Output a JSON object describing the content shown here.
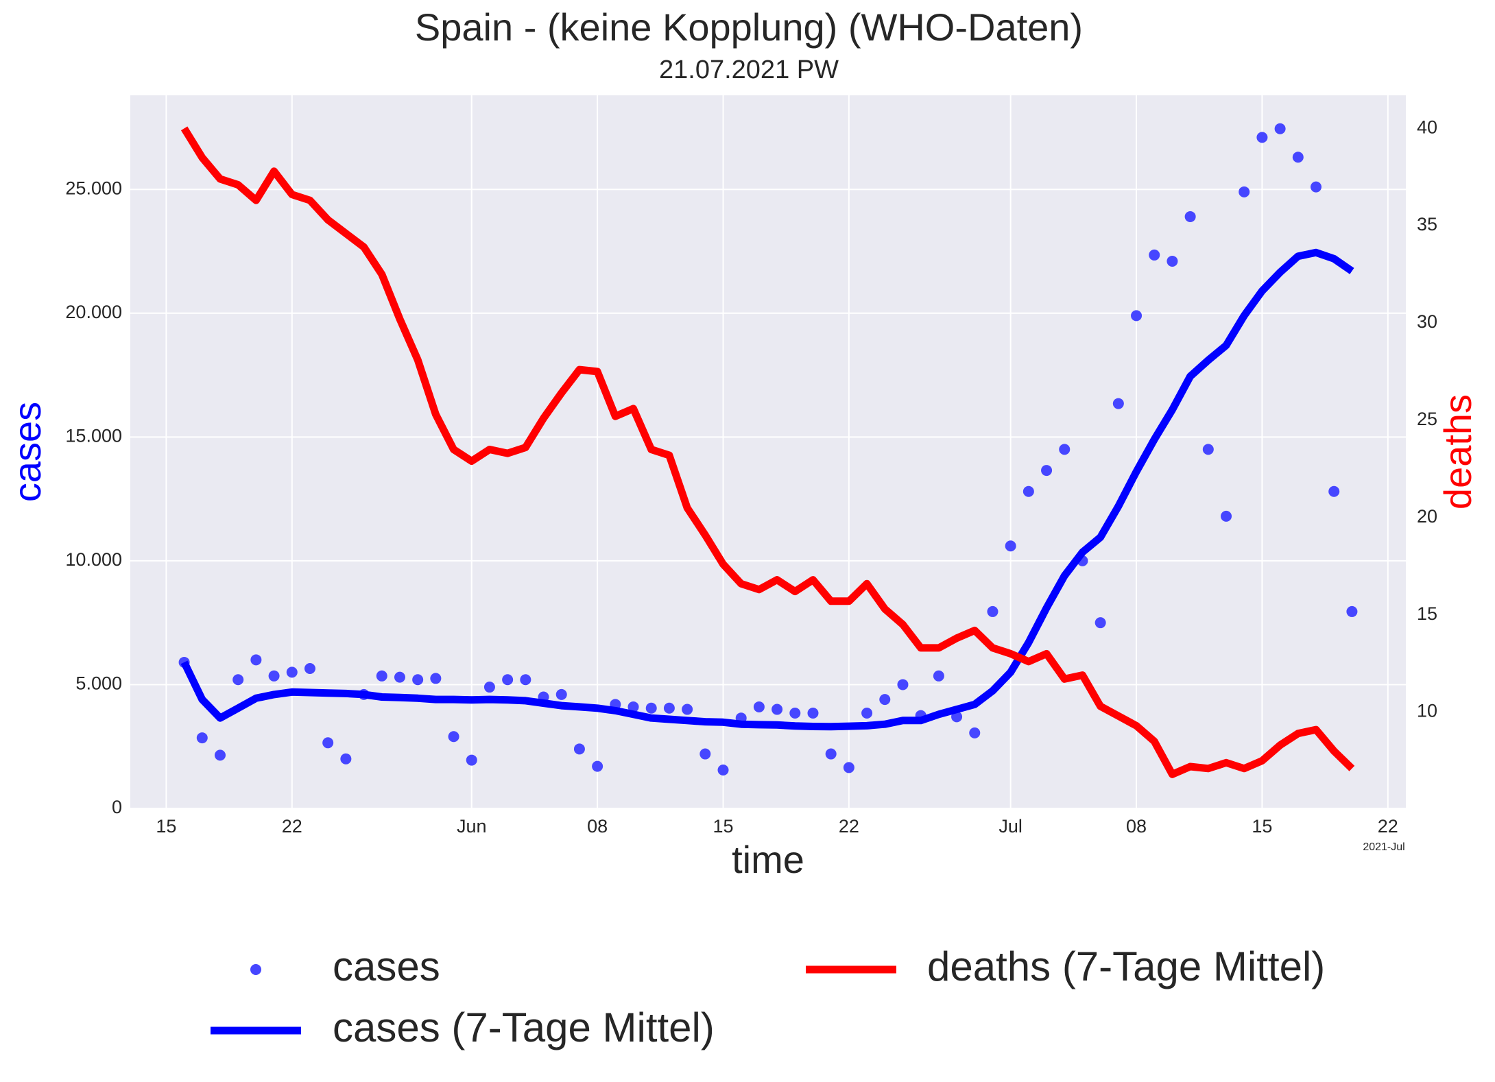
{
  "chart_data": {
    "type": "line",
    "title": "Spain - (keine Kopplung)  (WHO-Daten)",
    "subtitle": "21.07.2021 PW",
    "x_label": "time",
    "y_label": "cases",
    "y2_label": "deaths",
    "y_label_color": "#0000ff",
    "y2_label_color": "#ff0000",
    "x_offset_label": "2021-Jul",
    "grid": true,
    "x": [
      "2021-05-16",
      "2021-05-17",
      "2021-05-18",
      "2021-05-19",
      "2021-05-20",
      "2021-05-21",
      "2021-05-22",
      "2021-05-23",
      "2021-05-24",
      "2021-05-25",
      "2021-05-26",
      "2021-05-27",
      "2021-05-28",
      "2021-05-29",
      "2021-05-30",
      "2021-05-31",
      "2021-06-01",
      "2021-06-02",
      "2021-06-03",
      "2021-06-04",
      "2021-06-05",
      "2021-06-06",
      "2021-06-07",
      "2021-06-08",
      "2021-06-09",
      "2021-06-10",
      "2021-06-11",
      "2021-06-12",
      "2021-06-13",
      "2021-06-14",
      "2021-06-15",
      "2021-06-16",
      "2021-06-17",
      "2021-06-18",
      "2021-06-19",
      "2021-06-20",
      "2021-06-21",
      "2021-06-22",
      "2021-06-23",
      "2021-06-24",
      "2021-06-25",
      "2021-06-26",
      "2021-06-27",
      "2021-06-28",
      "2021-06-29",
      "2021-06-30",
      "2021-07-01",
      "2021-07-02",
      "2021-07-03",
      "2021-07-04",
      "2021-07-05",
      "2021-07-06",
      "2021-07-07",
      "2021-07-08",
      "2021-07-09",
      "2021-07-10",
      "2021-07-11",
      "2021-07-12",
      "2021-07-13",
      "2021-07-14",
      "2021-07-15",
      "2021-07-16",
      "2021-07-17",
      "2021-07-18",
      "2021-07-19",
      "2021-07-20"
    ],
    "xlim": [
      "2021-05-13",
      "2021-07-23"
    ],
    "xticks": [
      {
        "value": "2021-05-15",
        "label": "15"
      },
      {
        "value": "2021-05-22",
        "label": "22"
      },
      {
        "value": "2021-06-01",
        "label": "Jun"
      },
      {
        "value": "2021-06-08",
        "label": "08"
      },
      {
        "value": "2021-06-15",
        "label": "15"
      },
      {
        "value": "2021-06-22",
        "label": "22"
      },
      {
        "value": "2021-07-01",
        "label": "Jul"
      },
      {
        "value": "2021-07-08",
        "label": "08"
      },
      {
        "value": "2021-07-15",
        "label": "15"
      },
      {
        "value": "2021-07-22",
        "label": "22"
      }
    ],
    "ylim": [
      0,
      28800
    ],
    "yticks": [
      0,
      {
        "value": 5000,
        "label": "5.000"
      },
      {
        "value": 10000,
        "label": "10.000"
      },
      {
        "value": 15000,
        "label": "15.000"
      },
      {
        "value": 20000,
        "label": "20.000"
      },
      {
        "value": 25000,
        "label": "25.000"
      }
    ],
    "y2lim": [
      5.05,
      41.7
    ],
    "y2ticks": [
      10,
      15,
      20,
      25,
      30,
      35,
      40
    ],
    "series": [
      {
        "name": "cases",
        "color": "#4646ff",
        "style": "scatter",
        "values": [
          5900,
          2850,
          2150,
          5200,
          6000,
          5350,
          5500,
          5650,
          2650,
          2000,
          4600,
          5350,
          5300,
          5200,
          5250,
          2900,
          1950,
          4900,
          5200,
          5200,
          4500,
          4600,
          2400,
          1700,
          4200,
          4100,
          4050,
          4050,
          4000,
          2200,
          1550,
          3650,
          4100,
          4000,
          3850,
          3850,
          2200,
          1650,
          3850,
          4400,
          5000,
          3750,
          5350,
          3700,
          3050,
          7950,
          10600,
          12800,
          13650,
          14500,
          10000,
          7500,
          16350,
          19900,
          22350,
          22100,
          23900,
          14500,
          11800,
          24900,
          27100,
          27450,
          26300,
          25100,
          12800,
          7950
        ]
      },
      {
        "name": "cases (7-Tage Mittel)",
        "color": "#0000ff",
        "style": "line",
        "values": [
          5900,
          4400,
          3650,
          4050,
          4450,
          4600,
          4700,
          4680,
          4660,
          4640,
          4600,
          4500,
          4480,
          4450,
          4400,
          4400,
          4380,
          4400,
          4380,
          4350,
          4250,
          4150,
          4100,
          4050,
          3950,
          3800,
          3650,
          3600,
          3550,
          3500,
          3480,
          3400,
          3380,
          3370,
          3330,
          3310,
          3300,
          3320,
          3340,
          3400,
          3550,
          3550,
          3800,
          4000,
          4200,
          4750,
          5500,
          6700,
          8100,
          9400,
          10350,
          10950,
          12200,
          13600,
          14900,
          16100,
          17450,
          18100,
          18700,
          19900,
          20900,
          21650,
          22300,
          22450,
          22200,
          21700
        ]
      },
      {
        "name": "deaths (7-Tage Mittel)",
        "color": "#ff0000",
        "style": "line",
        "axis": "y2",
        "values": [
          40.0,
          38.5,
          37.4,
          37.1,
          36.3,
          37.8,
          36.6,
          36.3,
          35.3,
          34.6,
          33.9,
          32.5,
          30.2,
          28.1,
          25.3,
          23.5,
          22.9,
          23.5,
          23.3,
          23.6,
          25.1,
          26.4,
          27.6,
          27.5,
          25.2,
          25.6,
          23.5,
          23.2,
          20.5,
          19.1,
          17.6,
          16.6,
          16.3,
          16.8,
          16.2,
          16.8,
          15.7,
          15.7,
          16.6,
          15.3,
          14.5,
          13.3,
          13.3,
          13.8,
          14.2,
          13.3,
          13.0,
          12.6,
          13.0,
          11.7,
          11.9,
          10.3,
          9.8,
          9.3,
          8.5,
          6.8,
          7.2,
          7.1,
          7.4,
          7.1,
          7.5,
          8.3,
          8.9,
          9.1,
          8.0,
          7.1
        ]
      }
    ]
  }
}
